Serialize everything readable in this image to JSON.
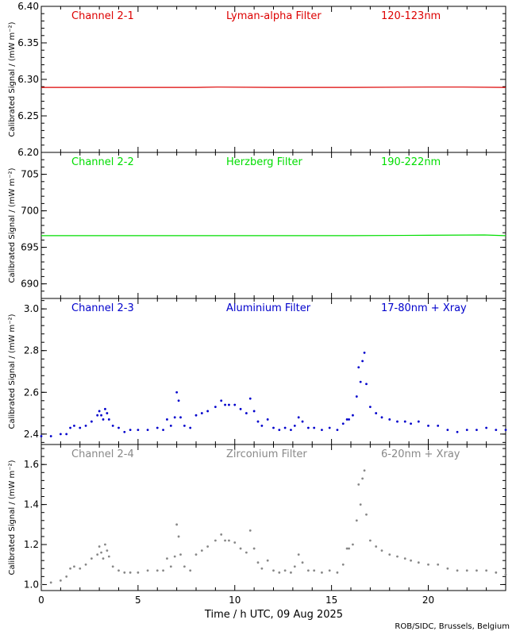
{
  "figure": {
    "x_axis_label": "Time / h UTC, 09 Aug 2025",
    "credit": "ROB/SIDC, Brussels, Belgium"
  },
  "chart_data": [
    {
      "type": "line",
      "channel": "Channel 2-1",
      "filter": "Lyman-alpha Filter",
      "band": "120-123nm",
      "color": "#dd0000",
      "ylabel": "Calibrated Signal / (mW m⁻²)",
      "xlim": [
        0,
        24
      ],
      "ylim": [
        6.2,
        6.4
      ],
      "yticks": [
        "6.20",
        "6.25",
        "6.30",
        "6.35",
        "6.40"
      ],
      "xticks": [
        0,
        5,
        10,
        15,
        20
      ],
      "series": [
        {
          "x": [
            0,
            4,
            8,
            9.1,
            12,
            16,
            20,
            21.8,
            24
          ],
          "y": [
            6.289,
            6.289,
            6.289,
            6.2895,
            6.289,
            6.289,
            6.2895,
            6.2895,
            6.289
          ]
        }
      ]
    },
    {
      "type": "line",
      "channel": "Channel 2-2",
      "filter": "Herzberg Filter",
      "band": "190-222nm",
      "color": "#00dd00",
      "ylabel": "Calibrated Signal / (mW m⁻²)",
      "xlim": [
        0,
        24
      ],
      "ylim": [
        688,
        708
      ],
      "yticks": [
        "690",
        "695",
        "700",
        "705"
      ],
      "xticks": [
        0,
        5,
        10,
        15,
        20
      ],
      "series": [
        {
          "x": [
            0,
            4,
            8,
            12,
            16,
            20,
            22.9,
            24
          ],
          "y": [
            696.6,
            696.6,
            696.6,
            696.6,
            696.6,
            696.65,
            696.7,
            696.6
          ]
        }
      ]
    },
    {
      "type": "scatter",
      "channel": "Channel 2-3",
      "filter": "Aluminium Filter",
      "band": "17-80nm + Xray",
      "color": "#0000cc",
      "ylabel": "Calibrated Signal / (mW m⁻²)",
      "xlim": [
        0,
        24
      ],
      "ylim": [
        2.35,
        3.05
      ],
      "yticks": [
        "2.4",
        "2.6",
        "2.8",
        "3.0"
      ],
      "xticks": [
        0,
        5,
        10,
        15,
        20
      ],
      "series": [
        {
          "x": [
            0.0,
            0.5,
            1.0,
            1.3,
            1.5,
            1.7,
            2.0,
            2.3,
            2.6,
            2.9,
            3.0,
            3.1,
            3.2,
            3.3,
            3.4,
            3.5,
            3.7,
            4.0,
            4.3,
            4.6,
            5.0,
            5.5,
            6.0,
            6.3,
            6.5,
            6.7,
            6.9,
            7.0,
            7.1,
            7.2,
            7.4,
            7.7,
            8.0,
            8.3,
            8.6,
            9.0,
            9.3,
            9.5,
            9.7,
            10.0,
            10.3,
            10.6,
            10.8,
            11.0,
            11.2,
            11.4,
            11.7,
            12.0,
            12.3,
            12.6,
            12.9,
            13.1,
            13.3,
            13.5,
            13.8,
            14.1,
            14.5,
            14.9,
            15.3,
            15.6,
            15.8,
            15.9,
            16.1,
            16.3,
            16.4,
            16.5,
            16.6,
            16.7,
            16.8,
            17.0,
            17.3,
            17.6,
            18.0,
            18.4,
            18.8,
            19.1,
            19.5,
            20.0,
            20.5,
            21.0,
            21.5,
            22.0,
            22.5,
            23.0,
            23.5,
            24.0
          ],
          "y": [
            2.39,
            2.39,
            2.4,
            2.4,
            2.43,
            2.44,
            2.43,
            2.44,
            2.46,
            2.49,
            2.51,
            2.49,
            2.47,
            2.52,
            2.5,
            2.47,
            2.44,
            2.43,
            2.41,
            2.42,
            2.42,
            2.42,
            2.43,
            2.42,
            2.47,
            2.44,
            2.48,
            2.6,
            2.56,
            2.48,
            2.44,
            2.43,
            2.49,
            2.5,
            2.51,
            2.53,
            2.56,
            2.54,
            2.54,
            2.54,
            2.52,
            2.5,
            2.57,
            2.51,
            2.46,
            2.44,
            2.47,
            2.43,
            2.42,
            2.43,
            2.42,
            2.44,
            2.48,
            2.46,
            2.43,
            2.43,
            2.42,
            2.43,
            2.42,
            2.45,
            2.47,
            2.47,
            2.49,
            2.58,
            2.72,
            2.65,
            2.75,
            2.79,
            2.64,
            2.53,
            2.5,
            2.48,
            2.47,
            2.46,
            2.46,
            2.45,
            2.46,
            2.44,
            2.44,
            2.42,
            2.41,
            2.42,
            2.42,
            2.43,
            2.42,
            2.42
          ]
        }
      ]
    },
    {
      "type": "scatter",
      "channel": "Channel 2-4",
      "filter": "Zirconium Filter",
      "band": "6-20nm + Xray",
      "color": "#888888",
      "ylabel": "Calibrated Signal / (mW m⁻²)",
      "xlim": [
        0,
        24
      ],
      "ylim": [
        0.97,
        1.7
      ],
      "yticks": [
        "1.0",
        "1.2",
        "1.4",
        "1.6"
      ],
      "xticks": [
        0,
        5,
        10,
        15,
        20
      ],
      "series": [
        {
          "x": [
            0.0,
            0.5,
            1.0,
            1.3,
            1.5,
            1.7,
            2.0,
            2.3,
            2.6,
            2.9,
            3.0,
            3.1,
            3.2,
            3.3,
            3.4,
            3.5,
            3.7,
            4.0,
            4.3,
            4.6,
            5.0,
            5.5,
            6.0,
            6.3,
            6.5,
            6.7,
            6.9,
            7.0,
            7.1,
            7.2,
            7.4,
            7.7,
            8.0,
            8.3,
            8.6,
            9.0,
            9.3,
            9.5,
            9.7,
            10.0,
            10.3,
            10.6,
            10.8,
            11.0,
            11.2,
            11.4,
            11.7,
            12.0,
            12.3,
            12.6,
            12.9,
            13.1,
            13.3,
            13.5,
            13.8,
            14.1,
            14.5,
            14.9,
            15.3,
            15.6,
            15.8,
            15.9,
            16.1,
            16.3,
            16.4,
            16.5,
            16.6,
            16.7,
            16.8,
            17.0,
            17.3,
            17.6,
            18.0,
            18.4,
            18.8,
            19.1,
            19.5,
            20.0,
            20.5,
            21.0,
            21.5,
            22.0,
            22.5,
            23.0,
            23.5,
            24.0
          ],
          "y": [
            1.0,
            1.01,
            1.02,
            1.04,
            1.08,
            1.09,
            1.08,
            1.1,
            1.13,
            1.15,
            1.19,
            1.16,
            1.13,
            1.2,
            1.17,
            1.14,
            1.09,
            1.07,
            1.06,
            1.06,
            1.06,
            1.07,
            1.07,
            1.07,
            1.13,
            1.09,
            1.14,
            1.3,
            1.24,
            1.15,
            1.09,
            1.07,
            1.15,
            1.17,
            1.19,
            1.22,
            1.25,
            1.22,
            1.22,
            1.21,
            1.18,
            1.16,
            1.27,
            1.18,
            1.11,
            1.08,
            1.12,
            1.07,
            1.06,
            1.07,
            1.06,
            1.09,
            1.15,
            1.11,
            1.07,
            1.07,
            1.06,
            1.07,
            1.06,
            1.1,
            1.18,
            1.18,
            1.2,
            1.32,
            1.5,
            1.4,
            1.53,
            1.57,
            1.35,
            1.22,
            1.19,
            1.17,
            1.15,
            1.14,
            1.13,
            1.12,
            1.11,
            1.1,
            1.1,
            1.08,
            1.07,
            1.07,
            1.07,
            1.07,
            1.06,
            1.05
          ]
        }
      ]
    }
  ]
}
